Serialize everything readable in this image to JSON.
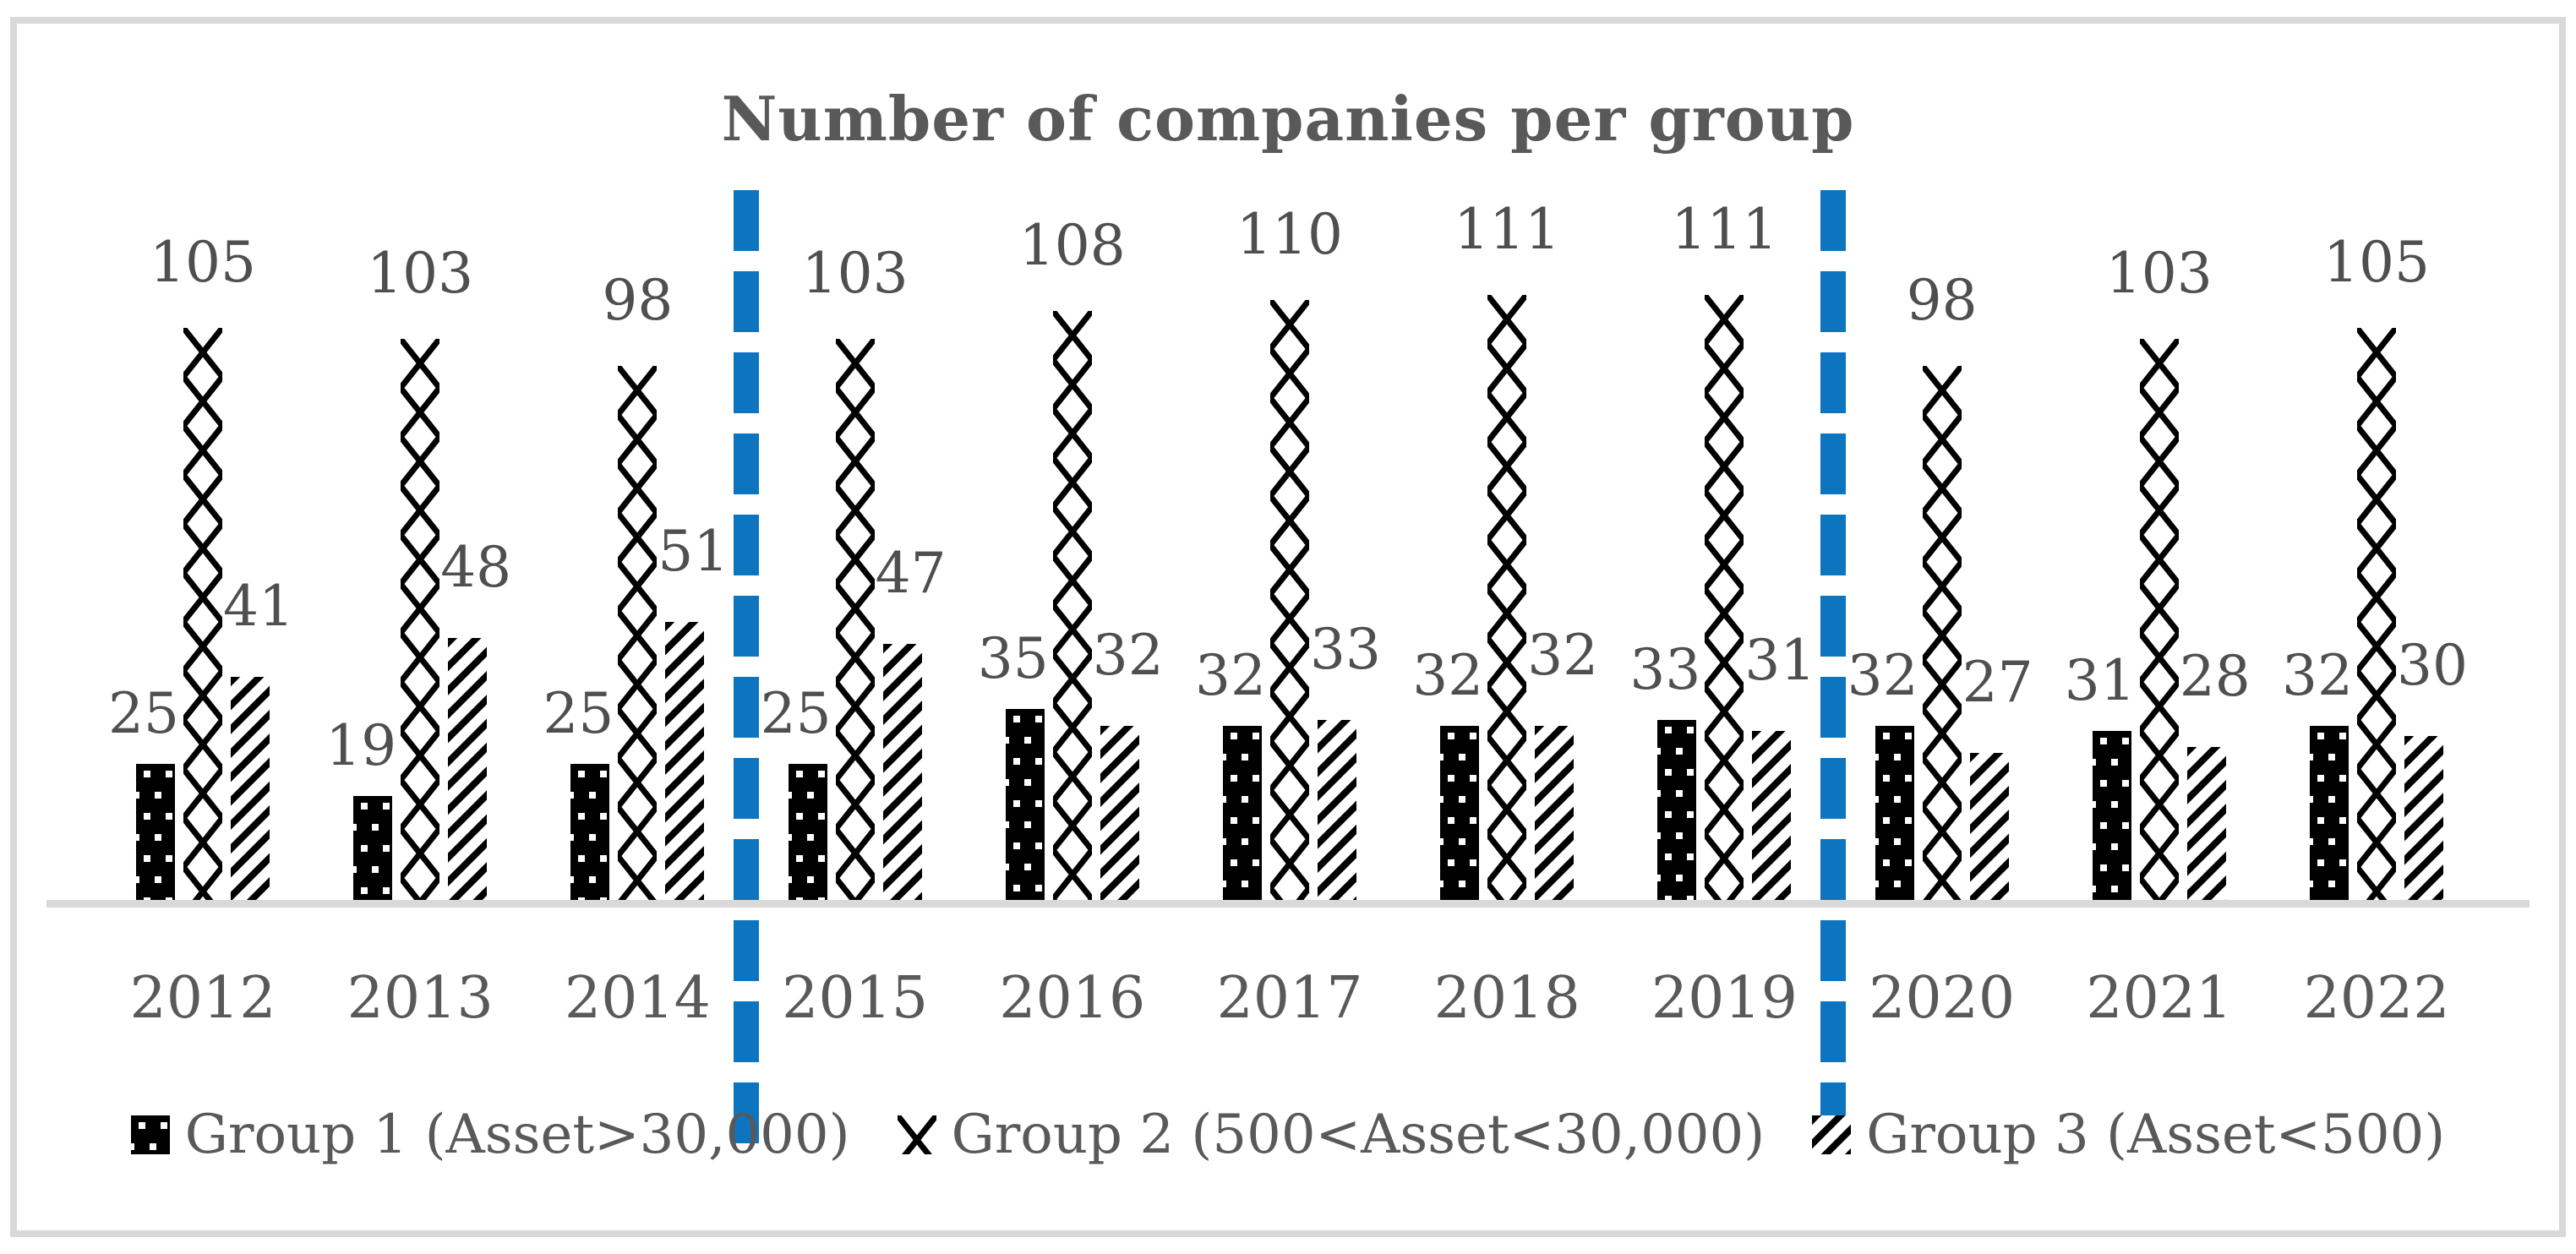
{
  "title": "Number of companies per group",
  "chart_data": {
    "type": "bar",
    "categories": [
      "2012",
      "2013",
      "2014",
      "2015",
      "2016",
      "2017",
      "2018",
      "2019",
      "2020",
      "2021",
      "2022"
    ],
    "series": [
      {
        "name": "Group 1 (Asset>30,000)",
        "pattern": "dots",
        "values": [
          25,
          19,
          25,
          25,
          35,
          32,
          32,
          33,
          32,
          31,
          32
        ]
      },
      {
        "name": "Group 2 (500<Asset<30,000)",
        "pattern": "crosshatch",
        "values": [
          105,
          103,
          98,
          103,
          108,
          110,
          111,
          111,
          98,
          103,
          105
        ]
      },
      {
        "name": "Group 3 (Asset<500)",
        "pattern": "diagonal",
        "values": [
          41,
          48,
          51,
          47,
          32,
          33,
          32,
          31,
          27,
          28,
          30
        ]
      }
    ],
    "title": "Number of companies per group",
    "xlabel": "",
    "ylabel": "",
    "ylim": [
      0,
      120
    ],
    "gridlines": false,
    "y_axis_visible": false,
    "data_labels_visible": true,
    "legend_position": "bottom",
    "separators_after": [
      "2014",
      "2019"
    ],
    "separator_style": "dashed-vertical-line",
    "separator_color": "#0d74c0",
    "bar_color": "#000000",
    "label_color": "#4f4f4f",
    "axis_text_color": "#595959",
    "axis_line_color": "#d9d9d9",
    "frame_border_color": "#d9d9d9"
  },
  "legend": {
    "items": [
      {
        "label": "Group 1 (Asset>30,000)"
      },
      {
        "label": "Group 2 (500<Asset<30,000)"
      },
      {
        "label": "Group 3 (Asset<500)"
      }
    ]
  }
}
